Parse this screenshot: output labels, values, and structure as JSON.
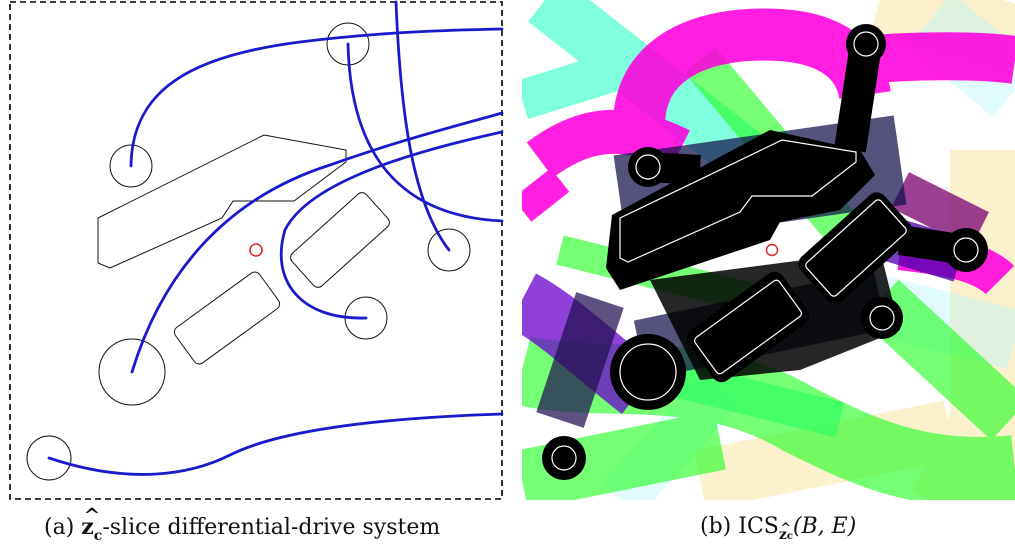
{
  "panel_a": {
    "caption_label": "(a)",
    "caption_symbol": "z",
    "caption_subscript": "c",
    "caption_text": "-slice differential-drive system"
  },
  "panel_b": {
    "caption_label": "(b)",
    "caption_ics": "ICS",
    "caption_subscript": "z",
    "caption_subsubscript": "c",
    "caption_args": "(B, E)"
  },
  "colors": {
    "trajectory": "#1a1acc",
    "robot_marker": "#e02020",
    "magenta": "#ff00dd",
    "cyan": "#33ffcc",
    "green": "#22ff22",
    "yellow": "#f7dd88",
    "lightcyan": "#b0f4ff"
  }
}
